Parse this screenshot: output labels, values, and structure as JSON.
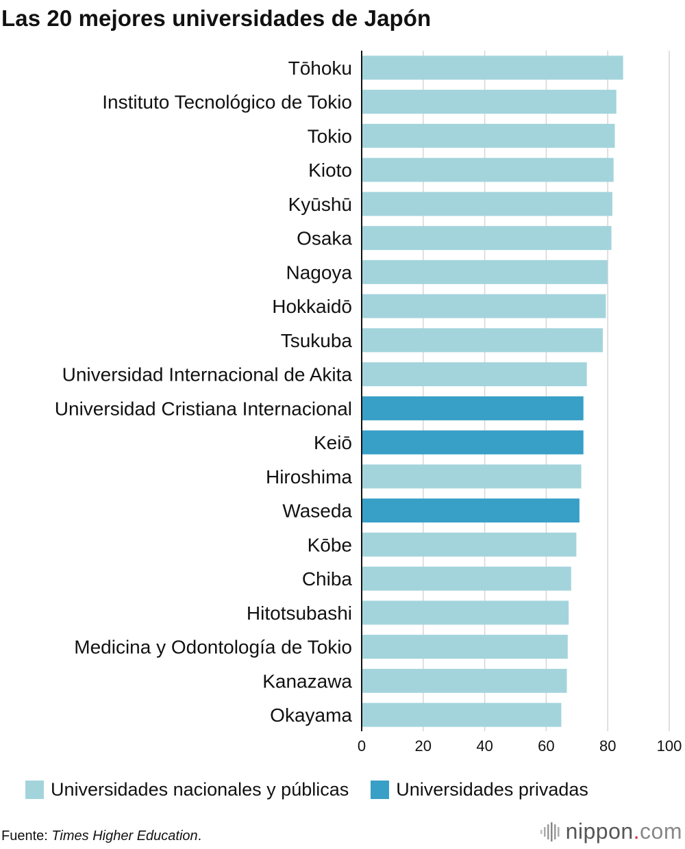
{
  "chart_data": {
    "type": "bar",
    "orientation": "horizontal",
    "title": "Las 20 mejores universidades de Japón",
    "xlabel": "",
    "ylabel": "",
    "xlim": [
      0,
      100
    ],
    "xticks": [
      "0",
      "20",
      "40",
      "60",
      "80",
      "100"
    ],
    "grid": true,
    "categories": [
      "Tōhoku",
      "Instituto Tecnológico de Tokio",
      "Tokio",
      "Kioto",
      "Kyūshū",
      "Osaka",
      "Nagoya",
      "Hokkaidō",
      "Tsukuba",
      "Universidad Internacional de Akita",
      "Universidad Cristiana Internacional",
      "Keiō",
      "Hiroshima",
      "Waseda",
      "Kōbe",
      "Chiba",
      "Hitotsubashi",
      "Medicina y Odontología de Tokio",
      "Kanazawa",
      "Okayama"
    ],
    "values": [
      85.0,
      82.8,
      82.3,
      81.9,
      81.5,
      81.2,
      79.9,
      79.4,
      78.4,
      73.2,
      72.1,
      72.1,
      71.4,
      70.8,
      69.8,
      68.1,
      67.3,
      67.0,
      66.7,
      64.9
    ],
    "groups": [
      "nacional",
      "nacional",
      "nacional",
      "nacional",
      "nacional",
      "nacional",
      "nacional",
      "nacional",
      "nacional",
      "nacional",
      "privada",
      "privada",
      "nacional",
      "privada",
      "nacional",
      "nacional",
      "nacional",
      "nacional",
      "nacional",
      "nacional"
    ],
    "legend": [
      {
        "key": "nacional",
        "label": "Universidades nacionales y públicas",
        "color": "#a3d4dc"
      },
      {
        "key": "privada",
        "label": "Universidades privadas",
        "color": "#389fc6"
      }
    ],
    "legend_position": "bottom"
  },
  "footer": {
    "prefix": "Fuente: ",
    "source": "Times Higher Education",
    "suffix": "."
  },
  "logo": {
    "word": "nippon",
    "dot": ".",
    "com": "com",
    "icon": "nippon-logo-icon"
  }
}
